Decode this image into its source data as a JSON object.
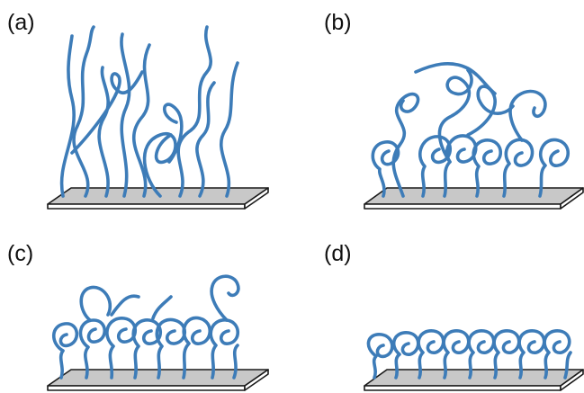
{
  "panels": [
    {
      "id": "a",
      "label": "(a)"
    },
    {
      "id": "b",
      "label": "(b)"
    },
    {
      "id": "c",
      "label": "(c)"
    },
    {
      "id": "d",
      "label": "(d)"
    }
  ],
  "colors": {
    "chain": "#3d7cb8",
    "substrate_top": "#c8c8c8",
    "outline": "#1a1a1a"
  }
}
